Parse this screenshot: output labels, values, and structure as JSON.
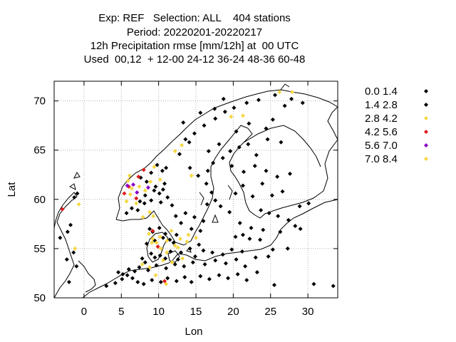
{
  "title_lines": [
    "Exp: REF   Selection: ALL    404 stations",
    "Period: 20220201-20220217",
    "12h Precipitation rmse [mm/12h] at  00 UTC",
    "Used  00,12  + 12-00 24-12 36-24 48-36 60-48"
  ],
  "chart_data": {
    "type": "scatter",
    "title": "12h Precipitation rmse [mm/12h] at  00 UTC",
    "xlabel": "Lon",
    "ylabel": "Lat",
    "xlim": [
      -4,
      34
    ],
    "ylim": [
      50,
      72
    ],
    "xticks": [
      0,
      5,
      10,
      15,
      20,
      25,
      30
    ],
    "yticks": [
      50,
      55,
      60,
      65,
      70
    ],
    "grid": true,
    "legend_position": "right",
    "legend": [
      {
        "label": "0.0 1.4",
        "color": "#000000"
      },
      {
        "label": "1.4 2.8",
        "color": "#000000"
      },
      {
        "label": "2.8 4.2",
        "color": "#f5d742"
      },
      {
        "label": "4.2 5.6",
        "color": "#e01b1b"
      },
      {
        "label": "5.6 7.0",
        "color": "#8a00c8"
      },
      {
        "label": "7.0 8.4",
        "color": "#f5d742"
      }
    ],
    "series": [
      {
        "name": "0.0 1.4",
        "color": "#000000",
        "points": [
          [
            3.0,
            51.2
          ],
          [
            4.2,
            51.5
          ],
          [
            5.1,
            51.9
          ],
          [
            5.8,
            52.3
          ],
          [
            6.5,
            52.0
          ],
          [
            7.2,
            51.6
          ],
          [
            8.0,
            51.4
          ],
          [
            9.1,
            51.8
          ],
          [
            10.3,
            51.6
          ],
          [
            11.2,
            52.0
          ],
          [
            12.4,
            51.7
          ],
          [
            13.5,
            52.1
          ],
          [
            14.4,
            51.6
          ],
          [
            15.6,
            52.2
          ],
          [
            16.8,
            51.9
          ],
          [
            18.1,
            52.3
          ],
          [
            19.3,
            52.0
          ],
          [
            20.6,
            52.4
          ],
          [
            21.8,
            51.8
          ],
          [
            23.2,
            52.6
          ],
          [
            25.5,
            51.3
          ],
          [
            30.8,
            51.4
          ],
          [
            33.4,
            51.2
          ],
          [
            4.6,
            52.6
          ],
          [
            6.0,
            52.9
          ],
          [
            7.4,
            53.1
          ],
          [
            8.6,
            52.8
          ],
          [
            9.7,
            53.3
          ],
          [
            11.0,
            53.0
          ],
          [
            12.2,
            53.4
          ],
          [
            13.4,
            53.2
          ],
          [
            14.6,
            53.6
          ],
          [
            16.2,
            53.4
          ],
          [
            17.6,
            53.8
          ],
          [
            19.0,
            53.5
          ],
          [
            20.4,
            53.9
          ],
          [
            21.6,
            53.2
          ],
          [
            23.0,
            54.1
          ],
          [
            7.8,
            54.0
          ],
          [
            9.0,
            54.5
          ],
          [
            10.2,
            54.3
          ],
          [
            11.6,
            54.7
          ],
          [
            13.0,
            54.6
          ],
          [
            14.2,
            55.0
          ],
          [
            16.0,
            54.8
          ],
          [
            18.6,
            54.4
          ],
          [
            21.2,
            54.7
          ],
          [
            8.4,
            55.5
          ],
          [
            9.5,
            55.8
          ],
          [
            10.6,
            56.1
          ],
          [
            12.0,
            55.6
          ],
          [
            9.2,
            56.7
          ],
          [
            10.1,
            57.1
          ],
          [
            8.8,
            57.0
          ],
          [
            5.7,
            58.6
          ],
          [
            6.4,
            59.1
          ],
          [
            7.2,
            58.9
          ],
          [
            8.1,
            59.6
          ],
          [
            9.0,
            59.9
          ],
          [
            10.3,
            59.7
          ],
          [
            11.2,
            60.2
          ],
          [
            10.6,
            61.0
          ],
          [
            9.6,
            61.3
          ],
          [
            8.4,
            61.8
          ],
          [
            7.6,
            62.2
          ],
          [
            9.0,
            62.7
          ],
          [
            10.5,
            62.9
          ],
          [
            9.8,
            63.5
          ],
          [
            11.0,
            63.2
          ],
          [
            10.1,
            60.6
          ],
          [
            11.8,
            59.4
          ],
          [
            12.3,
            58.3
          ],
          [
            13.6,
            58.6
          ],
          [
            14.8,
            58.2
          ],
          [
            16.0,
            57.8
          ],
          [
            13.0,
            57.6
          ],
          [
            14.4,
            57.0
          ],
          [
            15.6,
            56.8
          ],
          [
            16.5,
            59.5
          ],
          [
            17.6,
            59.9
          ],
          [
            18.3,
            59.3
          ],
          [
            17.1,
            60.7
          ],
          [
            16.4,
            61.6
          ],
          [
            15.3,
            62.4
          ],
          [
            14.2,
            63.2
          ],
          [
            16.6,
            62.9
          ],
          [
            17.3,
            63.7
          ],
          [
            18.6,
            64.2
          ],
          [
            19.6,
            64.9
          ],
          [
            20.8,
            65.3
          ],
          [
            22.0,
            65.6
          ],
          [
            18.1,
            65.6
          ],
          [
            16.7,
            64.9
          ],
          [
            13.6,
            66.1
          ],
          [
            14.8,
            66.7
          ],
          [
            16.1,
            67.5
          ],
          [
            17.6,
            68.2
          ],
          [
            18.9,
            68.9
          ],
          [
            20.1,
            69.3
          ],
          [
            21.8,
            69.8
          ],
          [
            23.4,
            70.1
          ],
          [
            25.6,
            70.6
          ],
          [
            27.8,
            70.2
          ],
          [
            29.3,
            69.8
          ],
          [
            22.6,
            60.3
          ],
          [
            21.3,
            61.4
          ],
          [
            23.9,
            61.6
          ],
          [
            25.2,
            60.4
          ],
          [
            26.6,
            60.8
          ],
          [
            24.4,
            62.9
          ],
          [
            25.9,
            62.3
          ],
          [
            27.6,
            62.6
          ],
          [
            22.9,
            63.4
          ],
          [
            26.0,
            58.3
          ],
          [
            24.8,
            58.6
          ],
          [
            27.4,
            57.9
          ],
          [
            28.3,
            57.3
          ],
          [
            26.3,
            56.7
          ],
          [
            24.0,
            56.9
          ],
          [
            22.4,
            57.1
          ],
          [
            21.3,
            56.4
          ],
          [
            23.6,
            55.9
          ],
          [
            25.3,
            54.9
          ],
          [
            22.2,
            56.0
          ],
          [
            20.9,
            57.6
          ],
          [
            20.3,
            56.2
          ],
          [
            28.9,
            59.3
          ]
        ]
      },
      {
        "name": "1.4 2.8",
        "color": "#000000",
        "points": [
          [
            5.2,
            52.4
          ],
          [
            6.8,
            52.7
          ],
          [
            8.2,
            53.6
          ],
          [
            9.5,
            54.1
          ],
          [
            10.9,
            54.0
          ],
          [
            12.6,
            53.9
          ],
          [
            14.9,
            54.2
          ],
          [
            15.4,
            55.4
          ],
          [
            17.2,
            54.6
          ],
          [
            19.8,
            54.9
          ],
          [
            11.5,
            55.9
          ],
          [
            10.9,
            56.5
          ],
          [
            12.4,
            56.4
          ],
          [
            9.4,
            60.9
          ],
          [
            10.8,
            61.6
          ],
          [
            8.2,
            60.4
          ],
          [
            7.5,
            59.8
          ],
          [
            -2.0,
            51.6
          ],
          [
            -1.0,
            53.2
          ],
          [
            -2.3,
            53.9
          ],
          [
            -1.4,
            54.6
          ],
          [
            -2.2,
            56.7
          ],
          [
            -3.2,
            56.1
          ],
          [
            -1.8,
            57.4
          ],
          [
            -0.9,
            60.6
          ],
          [
            -1.3,
            60.2
          ],
          [
            14.1,
            65.8
          ],
          [
            12.8,
            64.6
          ],
          [
            13.3,
            67.8
          ],
          [
            15.6,
            68.8
          ],
          [
            17.5,
            69.2
          ],
          [
            18.7,
            70.2
          ],
          [
            25.3,
            68.1
          ],
          [
            26.9,
            69.5
          ],
          [
            24.4,
            67.2
          ],
          [
            20.4,
            66.9
          ],
          [
            22.1,
            67.7
          ],
          [
            19.8,
            63.4
          ],
          [
            23.1,
            64.5
          ],
          [
            26.4,
            65.8
          ],
          [
            24.6,
            66.1
          ],
          [
            21.4,
            62.8
          ],
          [
            20.3,
            60.6
          ],
          [
            19.5,
            58.7
          ],
          [
            23.7,
            58.9
          ],
          [
            29.0,
            57.0
          ],
          [
            30.1,
            59.6
          ],
          [
            27.3,
            55.0
          ],
          [
            24.7,
            54.2
          ]
        ]
      },
      {
        "name": "2.8 4.2",
        "color": "#f5d742",
        "points": [
          [
            5.7,
            59.8
          ],
          [
            6.2,
            60.5
          ],
          [
            7.0,
            59.6
          ],
          [
            7.9,
            58.2
          ],
          [
            8.8,
            58.7
          ],
          [
            6.4,
            61.1
          ],
          [
            7.4,
            61.3
          ],
          [
            8.9,
            61.8
          ],
          [
            5.9,
            61.9
          ],
          [
            9.3,
            58.3
          ],
          [
            9.2,
            56.0
          ],
          [
            10.3,
            55.0
          ],
          [
            11.1,
            54.6
          ],
          [
            12.2,
            55.3
          ],
          [
            10.2,
            56.2
          ],
          [
            9.7,
            55.6
          ],
          [
            11.7,
            56.8
          ],
          [
            12.9,
            56.0
          ],
          [
            13.8,
            55.7
          ],
          [
            8.7,
            56.5
          ],
          [
            10.6,
            53.8
          ],
          [
            11.8,
            53.6
          ],
          [
            13.2,
            54.0
          ],
          [
            14.0,
            56.4
          ],
          [
            15.0,
            56.1
          ],
          [
            8.8,
            53.1
          ],
          [
            7.8,
            53.4
          ],
          [
            9.6,
            52.3
          ],
          [
            11.0,
            51.4
          ],
          [
            12.2,
            64.9
          ],
          [
            13.1,
            65.5
          ],
          [
            14.4,
            62.4
          ],
          [
            19.7,
            68.4
          ],
          [
            26.2,
            70.9
          ],
          [
            27.9,
            70.9
          ],
          [
            21.3,
            68.5
          ],
          [
            -0.7,
            59.5
          ],
          [
            -1.2,
            55.0
          ],
          [
            8.2,
            60.9
          ],
          [
            9.4,
            63.3
          ]
        ]
      },
      {
        "name": "4.2 5.6",
        "color": "#e01b1b",
        "points": [
          [
            -2.9,
            59.0
          ],
          [
            5.4,
            60.6
          ],
          [
            6.0,
            61.3
          ],
          [
            7.0,
            60.1
          ],
          [
            7.3,
            62.3
          ],
          [
            8.0,
            63.0
          ],
          [
            10.8,
            51.7
          ],
          [
            9.2,
            56.8
          ],
          [
            9.9,
            55.2
          ]
        ]
      },
      {
        "name": "5.6 7.0",
        "color": "#8a00c8",
        "points": [
          [
            6.6,
            61.5
          ],
          [
            7.1,
            60.7
          ],
          [
            8.6,
            61.2
          ],
          [
            5.8,
            61.4
          ]
        ]
      },
      {
        "name": "7.0 8.4",
        "color": "#f5d742",
        "points": [
          [
            6.1,
            62.4
          ],
          [
            10.2,
            62.0
          ],
          [
            11.1,
            55.8
          ],
          [
            12.6,
            55.1
          ],
          [
            9.1,
            55.6
          ]
        ]
      }
    ]
  }
}
